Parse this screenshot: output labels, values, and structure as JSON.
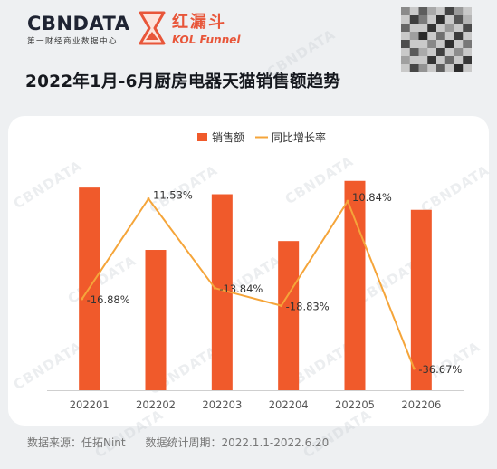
{
  "brand": {
    "cbndata_logo": "CBNDATA",
    "cbndata_sub": "第一财经商业数据中心",
    "kol_logo_cn": "红漏斗",
    "kol_logo_en": "KOL Funnel"
  },
  "watermark_text": "CBNDATA",
  "footer": {
    "source": "数据来源：任拓Nint",
    "period": "数据统计周期：2022.1.1-2022.6.20"
  },
  "colors": {
    "bar": "#f05a2b",
    "line": "#f5a53a",
    "accent": "#e8563a"
  },
  "chart_data": {
    "type": "bar",
    "title": "2022年1月-6月厨房电器天猫销售额趋势",
    "categories": [
      "202201",
      "202202",
      "202203",
      "202204",
      "202205",
      "202206"
    ],
    "legend_position": "top-right",
    "series": [
      {
        "name": "销售额",
        "type": "bar",
        "values": [
          91,
          63,
          88,
          67,
          94,
          81
        ]
      },
      {
        "name": "同比增长率",
        "type": "line",
        "values": [
          -16.88,
          11.53,
          -13.84,
          -18.83,
          10.84,
          -36.67
        ],
        "labels": [
          "-16.88%",
          "11.53%",
          "-13.84%",
          "-18.83%",
          "10.84%",
          "-36.67%"
        ]
      }
    ],
    "line_range": [
      -40,
      15
    ],
    "bar_range": [
      0,
      100
    ],
    "grid": false
  }
}
